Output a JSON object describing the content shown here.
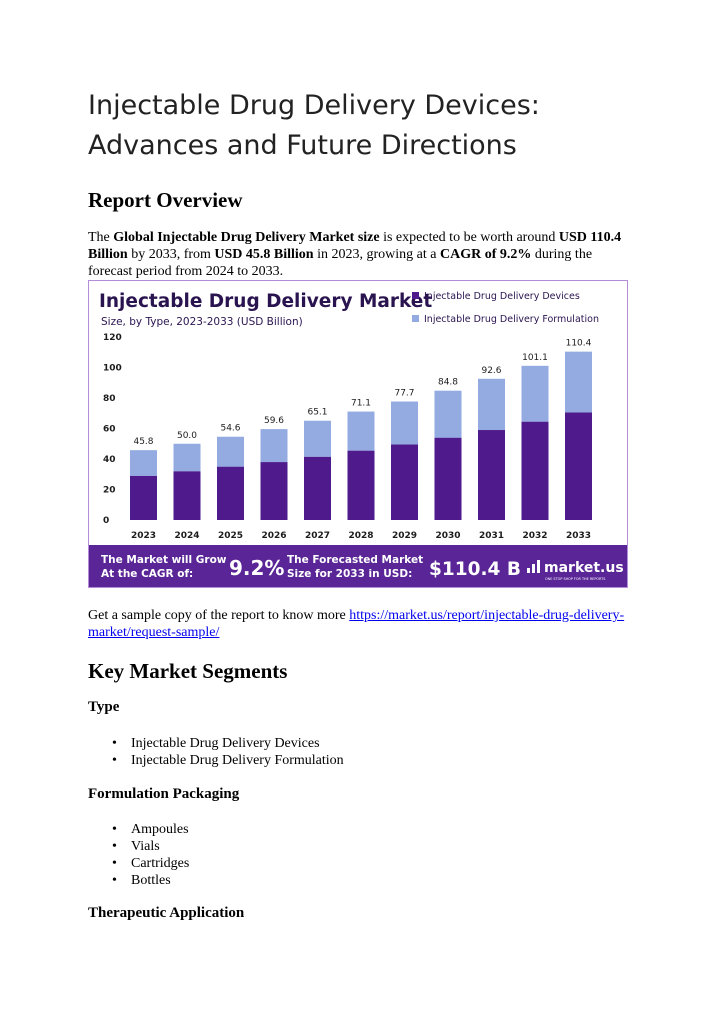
{
  "title": "Injectable Drug Delivery Devices: Advances and Future Directions",
  "report_overview": {
    "heading": "Report Overview",
    "p1": "The ",
    "b1": "Global Injectable Drug Delivery Market size",
    "p2": " is expected to be worth around ",
    "b2": "USD 110.4 Billion",
    "p3": " by 2033, from ",
    "b3": "USD 45.8 Billion",
    "p4": " in 2023, growing at a ",
    "b4": "CAGR of 9.2%",
    "p5": " during the forecast period from 2024 to 2033."
  },
  "chart_data": {
    "type": "bar",
    "title": "Injectable Drug Delivery Market",
    "subtitle": "Size, by Type, 2023-2033 (USD Billion)",
    "categories": [
      "2023",
      "2024",
      "2025",
      "2026",
      "2027",
      "2028",
      "2029",
      "2030",
      "2031",
      "2032",
      "2033"
    ],
    "totals": [
      "45.8",
      "50.0",
      "54.6",
      "59.6",
      "65.1",
      "71.1",
      "77.7",
      "84.8",
      "92.6",
      "101.1",
      "110.4"
    ],
    "series": [
      {
        "name": "Injectable Drug Delivery Devices",
        "values": [
          29,
          32,
          35,
          38,
          41.5,
          45.5,
          49.5,
          54,
          59,
          64.5,
          70.5
        ]
      },
      {
        "name": "Injectable Drug Delivery Formulation",
        "values": [
          16.8,
          18,
          19.6,
          21.6,
          23.6,
          25.6,
          28.2,
          30.8,
          33.6,
          36.6,
          39.9
        ]
      }
    ],
    "yticks": [
      "0",
      "20",
      "40",
      "60",
      "80",
      "100",
      "120"
    ],
    "ylim": [
      0,
      120
    ],
    "legend": "top-right",
    "colors": {
      "devices": "#4e1a8c",
      "formulation": "#93abe0",
      "banner": "#5a2596"
    },
    "banner": {
      "text1_line1": "The Market will Grow",
      "text1_line2": "At the CAGR of:",
      "cagr": "9.2%",
      "text2_line1": "The Forecasted Market",
      "text2_line2": "Size for 2033 in USD:",
      "size": "$110.4 B",
      "brand": "market.us",
      "brand_tagline": "ONE STOP SHOP FOR THE REPORTS"
    }
  },
  "sample": {
    "text": "Get a sample copy of the report to know more ",
    "link": "https://market.us/report/injectable-drug-delivery-market/request-sample/"
  },
  "segments": {
    "heading": "Key Market Segments",
    "type": {
      "heading": "Type",
      "items": [
        "Injectable Drug Delivery Devices",
        "Injectable Drug Delivery Formulation"
      ]
    },
    "packaging": {
      "heading": "Formulation Packaging",
      "items": [
        "Ampoules",
        "Vials",
        "Cartridges",
        "Bottles"
      ]
    },
    "therapeutic": {
      "heading": "Therapeutic Application"
    }
  }
}
